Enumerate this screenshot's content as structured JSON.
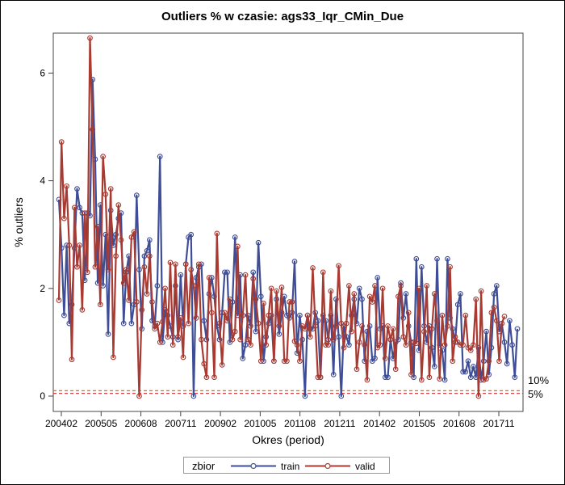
{
  "chart_data": {
    "type": "line",
    "title": "Outliers % w czasie: ags33_Iqr_CMin_Due",
    "xlabel": "Okres (period)",
    "ylabel": "% outliers",
    "x_tick_labels": [
      "200402",
      "200505",
      "200608",
      "200711",
      "200902",
      "201005",
      "201108",
      "201211",
      "201402",
      "201505",
      "201608",
      "201711"
    ],
    "y_ticks": [
      0,
      2,
      4,
      6
    ],
    "ylim": [
      0,
      6.7
    ],
    "legend": {
      "title": "zbior",
      "position": "bottom"
    },
    "reference_lines": [
      {
        "label": "10%",
        "value": 0.1,
        "color": "#e06b1a"
      },
      {
        "label": "5%",
        "value": 0.05,
        "color": "#d62828"
      }
    ],
    "series": [
      {
        "name": "train",
        "color": "#3e4d96",
        "values": [
          3.65,
          2.75,
          1.5,
          2.8,
          1.35,
          1.7,
          2.75,
          3.85,
          3.5,
          3.4,
          2.15,
          3.4,
          3.35,
          5.88,
          4.4,
          2.1,
          3.55,
          2.05,
          3.0,
          1.15,
          3.45,
          2.8,
          3.0,
          3.3,
          3.4,
          1.35,
          2.3,
          2.6,
          1.35,
          1.7,
          3.73,
          2.35,
          1.25,
          2.6,
          2.7,
          2.9,
          1.4,
          1.3,
          2.05,
          4.45,
          1.0,
          1.6,
          1.5,
          1.3,
          1.1,
          2.05,
          1.05,
          2.25,
          1.3,
          2.45,
          2.95,
          3.0,
          0.0,
          2.2,
          2.4,
          2.45,
          1.4,
          1.05,
          1.9,
          2.2,
          1.85,
          1.3,
          1.05,
          1.55,
          2.3,
          2.3,
          1.0,
          1.75,
          2.95,
          1.5,
          2.25,
          0.7,
          0.95,
          1.5,
          1.3,
          2.3,
          1.2,
          2.85,
          1.85,
          0.65,
          1.1,
          1.35,
          1.5,
          0.65,
          1.8,
          1.15,
          1.55,
          1.85,
          1.5,
          1.45,
          1.55,
          2.5,
          0.8,
          1.5,
          1.05,
          0.0,
          1.5,
          1.25,
          1.25,
          1.55,
          1.4,
          0.35,
          1.5,
          1.4,
          1.05,
          1.5,
          0.4,
          1.8,
          1.1,
          0.0,
          1.3,
          1.1,
          0.95,
          1.5,
          1.8,
          1.35,
          2.0,
          1.8,
          0.65,
          1.2,
          1.3,
          0.65,
          0.7,
          2.2,
          1.25,
          1.3,
          0.35,
          0.35,
          1.05,
          0.7,
          1.0,
          1.05,
          2.1,
          1.45,
          1.9,
          1.3,
          1.0,
          0.35,
          2.55,
          0.85,
          2.4,
          1.3,
          1.0,
          1.3,
          0.9,
          0.55,
          2.55,
          0.95,
          0.85,
          0.3,
          2.55,
          1.45,
          1.25,
          1.0,
          1.7,
          1.9,
          0.45,
          0.45,
          0.65,
          0.35,
          0.55,
          0.35,
          0.9,
          0.3,
          0.65,
          1.2,
          0.4,
          0.9,
          1.9,
          2.05,
          1.2,
          1.35,
          1.0,
          0.6,
          1.4,
          0.95,
          0.35,
          1.25
        ]
      },
      {
        "name": "valid",
        "color": "#a83a32",
        "values": [
          1.78,
          4.72,
          3.3,
          3.9,
          2.8,
          0.68,
          3.5,
          2.4,
          2.8,
          1.6,
          3.4,
          2.3,
          6.65,
          4.95,
          2.4,
          3.15,
          1.7,
          4.45,
          3.75,
          2.35,
          3.85,
          0.72,
          2.6,
          3.55,
          2.9,
          2.1,
          2.35,
          1.78,
          2.95,
          3.05,
          1.75,
          0.0,
          1.6,
          2.4,
          1.9,
          2.6,
          1.75,
          1.25,
          1.35,
          1.0,
          1.38,
          2.0,
          1.1,
          2.48,
          0.95,
          2.45,
          1.1,
          1.45,
          0.72,
          2.45,
          1.35,
          2.35,
          2.05,
          1.45,
          2.45,
          1.05,
          0.6,
          0.35,
          2.2,
          1.55,
          0.35,
          3.02,
          1.35,
          0.58,
          1.55,
          1.4,
          1.8,
          1.05,
          1.2,
          2.78,
          1.05,
          1.5,
          2.25,
          1.05,
          0.95,
          2.18,
          1.8,
          1.35,
          0.65,
          1.72,
          0.95,
          1.5,
          2.0,
          0.65,
          1.95,
          1.3,
          2.02,
          0.65,
          0.65,
          1.75,
          1.75,
          1.02,
          0.95,
          0.65,
          1.3,
          1.25,
          1.5,
          1.1,
          2.38,
          1.3,
          0.35,
          0.35,
          2.3,
          0.95,
          0.95,
          1.95,
          1.05,
          1.3,
          2.42,
          1.35,
          0.9,
          1.35,
          2.05,
          1.2,
          1.9,
          0.5,
          1.0,
          1.3,
          0.95,
          0.3,
          1.85,
          1.75,
          2.05,
          0.9,
          0.95,
          2.0,
          0.7,
          1.3,
          1.05,
          1.25,
          0.5,
          1.85,
          2.05,
          1.1,
          0.95,
          1.55,
          0.4,
          1.0,
          0.98,
          2.0,
          0.3,
          1.2,
          2.05,
          0.35,
          1.25,
          1.9,
          1.4,
          0.32,
          1.5,
          0.95,
          1.3,
          2.4,
          0.65,
          1.1,
          1.0,
          0.95,
          0.95,
          1.5,
          0.9,
          0.85,
          0.95,
          1.8,
          0.0,
          1.95,
          0.3,
          0.32,
          0.65,
          1.55,
          1.65,
          1.4,
          0.65,
          1.35,
          1.48
        ]
      }
    ]
  }
}
